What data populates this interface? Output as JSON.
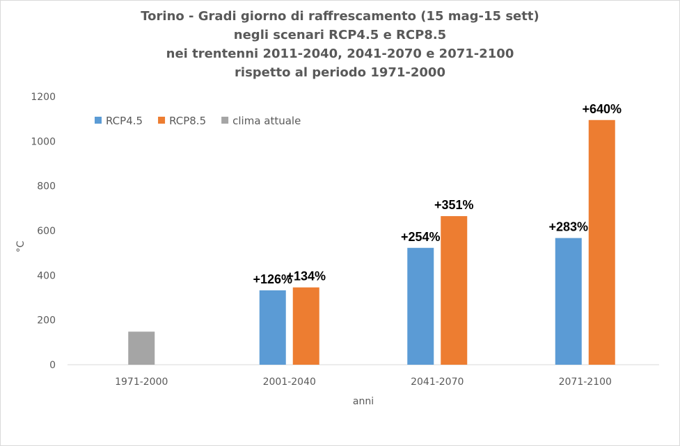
{
  "chart_data": {
    "type": "bar",
    "title_lines": [
      "Torino - Gradi giorno di raffrescamento (15 mag-15 sett)",
      "negli scenari RCP4.5 e RCP8.5",
      "nei trentenni 2011-2040, 2041-2070 e  2071-2100",
      "rispetto al periodo 1971-2000"
    ],
    "xlabel": "anni",
    "ylabel": "°C",
    "ylim": [
      0,
      1200
    ],
    "yticks": [
      0,
      200,
      400,
      600,
      800,
      1000,
      1200
    ],
    "categories": [
      "1971-2000",
      "2001-2040",
      "2041-2070",
      "2071-2100"
    ],
    "series": [
      {
        "name": "RCP4.5",
        "color": "#5b9bd5",
        "values": [
          null,
          333,
          523,
          567
        ],
        "labels": [
          null,
          "+126%",
          "+254%",
          "+283%"
        ]
      },
      {
        "name": "RCP8.5",
        "color": "#ed7d31",
        "values": [
          null,
          346,
          665,
          1095
        ],
        "labels": [
          null,
          "+134%",
          "+351%",
          "+640%"
        ]
      },
      {
        "name": "clima attuale",
        "color": "#a5a5a5",
        "values": [
          148,
          null,
          null,
          null
        ],
        "labels": [
          null,
          null,
          null,
          null
        ]
      }
    ],
    "grid": false,
    "legend_position": "top-left"
  }
}
